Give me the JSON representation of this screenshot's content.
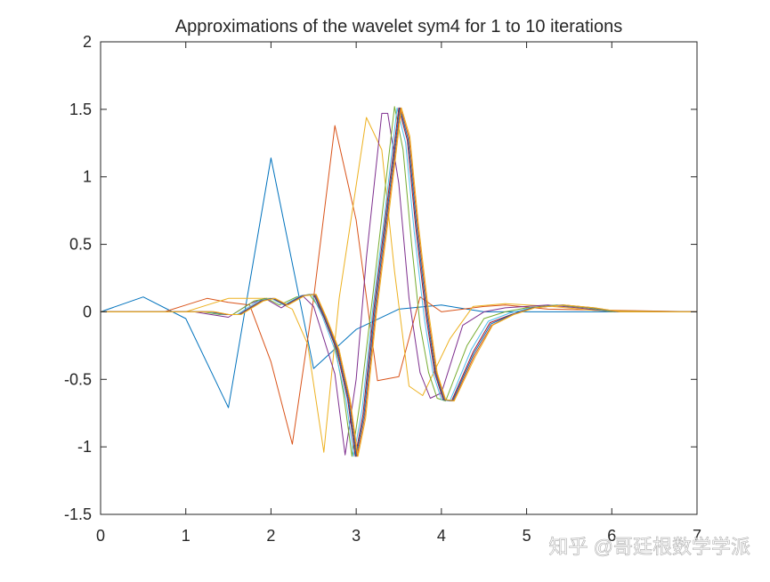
{
  "chart_data": {
    "type": "line",
    "title": "Approximations of the wavelet sym4 for 1 to 10 iterations",
    "xlabel": "",
    "ylabel": "",
    "xlim": [
      0,
      7
    ],
    "ylim": [
      -1.5,
      2
    ],
    "xticks": [
      "0",
      "1",
      "2",
      "3",
      "4",
      "5",
      "6",
      "7"
    ],
    "yticks": [
      "-1.5",
      "-1",
      "-0.5",
      "0",
      "0.5",
      "1",
      "1.5",
      "2"
    ],
    "grid": false,
    "legend": "none",
    "series": [
      {
        "color": "#0072BD",
        "points": [
          [
            0,
            0
          ],
          [
            0.5,
            0.11
          ],
          [
            1,
            -0.05
          ],
          [
            1.5,
            -0.71
          ],
          [
            2,
            1.14
          ],
          [
            2.5,
            -0.42
          ],
          [
            3,
            -0.13
          ],
          [
            3.5,
            0.02
          ],
          [
            4,
            0.05
          ],
          [
            4.5,
            0
          ],
          [
            5,
            0
          ],
          [
            7,
            0
          ]
        ]
      },
      {
        "color": "#D95319",
        "points": [
          [
            0,
            0
          ],
          [
            0.75,
            0
          ],
          [
            1,
            0.05
          ],
          [
            1.25,
            0.1
          ],
          [
            1.5,
            0.07
          ],
          [
            1.75,
            0.05
          ],
          [
            2,
            -0.37
          ],
          [
            2.25,
            -0.98
          ],
          [
            2.5,
            0.1
          ],
          [
            2.75,
            1.38
          ],
          [
            3,
            0.68
          ],
          [
            3.25,
            -0.51
          ],
          [
            3.5,
            -0.48
          ],
          [
            3.75,
            0.11
          ],
          [
            4,
            0
          ],
          [
            4.5,
            0.04
          ],
          [
            4.75,
            0.05
          ],
          [
            5.25,
            0.02
          ],
          [
            7,
            0
          ]
        ]
      },
      {
        "color": "#EDB120",
        "points": [
          [
            0,
            0
          ],
          [
            1,
            0
          ],
          [
            1.25,
            0.05
          ],
          [
            1.5,
            0.1
          ],
          [
            1.75,
            0.1
          ],
          [
            2,
            0.1
          ],
          [
            2.25,
            0.02
          ],
          [
            2.43,
            -0.24
          ],
          [
            2.62,
            -1.04
          ],
          [
            2.8,
            0.1
          ],
          [
            3.12,
            1.44
          ],
          [
            3.3,
            1.2
          ],
          [
            3.45,
            0.3
          ],
          [
            3.62,
            -0.55
          ],
          [
            3.78,
            -0.62
          ],
          [
            4.1,
            -0.2
          ],
          [
            4.37,
            0.04
          ],
          [
            4.75,
            0.06
          ],
          [
            5.3,
            0.04
          ],
          [
            5.8,
            0.01
          ],
          [
            7,
            0
          ]
        ]
      },
      {
        "color": "#7E2F8E",
        "points": [
          [
            0,
            0
          ],
          [
            1.1,
            0
          ],
          [
            1.3,
            -0.02
          ],
          [
            1.5,
            -0.04
          ],
          [
            1.75,
            0.06
          ],
          [
            1.93,
            0.1
          ],
          [
            2.12,
            0.03
          ],
          [
            2.25,
            0.08
          ],
          [
            2.37,
            0.12
          ],
          [
            2.5,
            0.04
          ],
          [
            2.62,
            -0.2
          ],
          [
            2.75,
            -0.46
          ],
          [
            2.87,
            -1.06
          ],
          [
            3,
            -0.5
          ],
          [
            3.12,
            0.4
          ],
          [
            3.3,
            1.47
          ],
          [
            3.37,
            1.47
          ],
          [
            3.5,
            0.95
          ],
          [
            3.62,
            0.1
          ],
          [
            3.75,
            -0.45
          ],
          [
            3.87,
            -0.64
          ],
          [
            4,
            -0.6
          ],
          [
            4.25,
            -0.1
          ],
          [
            4.5,
            0
          ],
          [
            4.75,
            0.03
          ],
          [
            5.25,
            0.05
          ],
          [
            5.6,
            0.03
          ],
          [
            6,
            0
          ],
          [
            7,
            0
          ]
        ]
      },
      {
        "color": "#77AC30",
        "points": [
          [
            0,
            0
          ],
          [
            1.2,
            0
          ],
          [
            1.4,
            -0.02
          ],
          [
            1.55,
            -0.02
          ],
          [
            1.8,
            0.08
          ],
          [
            1.95,
            0.1
          ],
          [
            2.1,
            0.05
          ],
          [
            2.3,
            0.11
          ],
          [
            2.45,
            0.13
          ],
          [
            2.6,
            0
          ],
          [
            2.75,
            -0.25
          ],
          [
            2.85,
            -0.6
          ],
          [
            2.95,
            -1.07
          ],
          [
            3.05,
            -0.65
          ],
          [
            3.2,
            0.15
          ],
          [
            3.3,
            0.7
          ],
          [
            3.45,
            1.52
          ],
          [
            3.55,
            1.2
          ],
          [
            3.65,
            0.5
          ],
          [
            3.75,
            -0.1
          ],
          [
            3.85,
            -0.45
          ],
          [
            3.95,
            -0.64
          ],
          [
            4.05,
            -0.66
          ],
          [
            4.3,
            -0.25
          ],
          [
            4.5,
            -0.05
          ],
          [
            4.75,
            0
          ],
          [
            5,
            0.03
          ],
          [
            5.35,
            0.05
          ],
          [
            5.7,
            0.03
          ],
          [
            6,
            0
          ],
          [
            7,
            0
          ]
        ]
      },
      {
        "color": "#4DBEEE",
        "points": [
          [
            0,
            0
          ],
          [
            1.25,
            0
          ],
          [
            1.45,
            -0.02
          ],
          [
            1.6,
            -0.02
          ],
          [
            1.85,
            0.08
          ],
          [
            2,
            0.1
          ],
          [
            2.15,
            0.05
          ],
          [
            2.35,
            0.12
          ],
          [
            2.48,
            0.13
          ],
          [
            2.6,
            -0.03
          ],
          [
            2.75,
            -0.28
          ],
          [
            2.88,
            -0.65
          ],
          [
            2.97,
            -1.07
          ],
          [
            3.07,
            -0.72
          ],
          [
            3.2,
            0.05
          ],
          [
            3.32,
            0.65
          ],
          [
            3.48,
            1.51
          ],
          [
            3.58,
            1.25
          ],
          [
            3.68,
            0.6
          ],
          [
            3.8,
            -0.05
          ],
          [
            3.9,
            -0.45
          ],
          [
            4,
            -0.65
          ],
          [
            4.1,
            -0.66
          ],
          [
            4.35,
            -0.28
          ],
          [
            4.55,
            -0.07
          ],
          [
            4.8,
            -0.01
          ],
          [
            5.05,
            0.03
          ],
          [
            5.4,
            0.05
          ],
          [
            5.75,
            0.03
          ],
          [
            6.05,
            0
          ],
          [
            7,
            0
          ]
        ]
      },
      {
        "color": "#A2142F",
        "points": [
          [
            0,
            0
          ],
          [
            1.3,
            0
          ],
          [
            1.48,
            -0.02
          ],
          [
            1.62,
            -0.02
          ],
          [
            1.88,
            0.08
          ],
          [
            2.02,
            0.1
          ],
          [
            2.17,
            0.05
          ],
          [
            2.37,
            0.12
          ],
          [
            2.5,
            0.13
          ],
          [
            2.62,
            -0.04
          ],
          [
            2.77,
            -0.28
          ],
          [
            2.9,
            -0.65
          ],
          [
            2.99,
            -1.07
          ],
          [
            3.08,
            -0.76
          ],
          [
            3.21,
            0.03
          ],
          [
            3.33,
            0.63
          ],
          [
            3.5,
            1.51
          ],
          [
            3.6,
            1.27
          ],
          [
            3.7,
            0.62
          ],
          [
            3.82,
            -0.03
          ],
          [
            3.92,
            -0.45
          ],
          [
            4.02,
            -0.65
          ],
          [
            4.12,
            -0.66
          ],
          [
            4.37,
            -0.3
          ],
          [
            4.57,
            -0.08
          ],
          [
            4.82,
            -0.02
          ],
          [
            5.07,
            0.03
          ],
          [
            5.42,
            0.05
          ],
          [
            5.77,
            0.03
          ],
          [
            6.07,
            0
          ],
          [
            7,
            0
          ]
        ]
      },
      {
        "color": "#0072BD",
        "points": [
          [
            0,
            0
          ],
          [
            1.32,
            0
          ],
          [
            1.5,
            -0.02
          ],
          [
            1.63,
            -0.02
          ],
          [
            1.89,
            0.08
          ],
          [
            2.03,
            0.1
          ],
          [
            2.18,
            0.05
          ],
          [
            2.38,
            0.12
          ],
          [
            2.51,
            0.13
          ],
          [
            2.63,
            -0.04
          ],
          [
            2.78,
            -0.28
          ],
          [
            2.91,
            -0.65
          ],
          [
            3,
            -1.07
          ],
          [
            3.09,
            -0.77
          ],
          [
            3.22,
            0.02
          ],
          [
            3.34,
            0.62
          ],
          [
            3.51,
            1.51
          ],
          [
            3.61,
            1.28
          ],
          [
            3.71,
            0.63
          ],
          [
            3.83,
            -0.02
          ],
          [
            3.93,
            -0.45
          ],
          [
            4.03,
            -0.65
          ],
          [
            4.13,
            -0.66
          ],
          [
            4.38,
            -0.31
          ],
          [
            4.58,
            -0.09
          ],
          [
            4.83,
            -0.02
          ],
          [
            5.08,
            0.03
          ],
          [
            5.43,
            0.05
          ],
          [
            5.78,
            0.03
          ],
          [
            6.08,
            0
          ],
          [
            7,
            0
          ]
        ]
      },
      {
        "color": "#D95319",
        "points": [
          [
            0,
            0
          ],
          [
            1.33,
            0
          ],
          [
            1.5,
            -0.02
          ],
          [
            1.64,
            -0.02
          ],
          [
            1.9,
            0.08
          ],
          [
            2.04,
            0.1
          ],
          [
            2.19,
            0.05
          ],
          [
            2.39,
            0.12
          ],
          [
            2.52,
            0.13
          ],
          [
            2.64,
            -0.04
          ],
          [
            2.79,
            -0.28
          ],
          [
            2.92,
            -0.65
          ],
          [
            3.01,
            -1.07
          ],
          [
            3.1,
            -0.78
          ],
          [
            3.23,
            0.01
          ],
          [
            3.35,
            0.61
          ],
          [
            3.52,
            1.51
          ],
          [
            3.62,
            1.29
          ],
          [
            3.72,
            0.64
          ],
          [
            3.84,
            -0.01
          ],
          [
            3.94,
            -0.45
          ],
          [
            4.04,
            -0.65
          ],
          [
            4.14,
            -0.66
          ],
          [
            4.39,
            -0.32
          ],
          [
            4.59,
            -0.1
          ],
          [
            4.84,
            -0.02
          ],
          [
            5.09,
            0.03
          ],
          [
            5.44,
            0.05
          ],
          [
            5.79,
            0.03
          ],
          [
            6.09,
            0
          ],
          [
            7,
            0
          ]
        ]
      },
      {
        "color": "#EDB120",
        "points": [
          [
            0,
            0
          ],
          [
            1.34,
            0
          ],
          [
            1.51,
            -0.02
          ],
          [
            1.65,
            -0.02
          ],
          [
            1.91,
            0.08
          ],
          [
            2.05,
            0.1
          ],
          [
            2.2,
            0.05
          ],
          [
            2.4,
            0.12
          ],
          [
            2.53,
            0.13
          ],
          [
            2.65,
            -0.04
          ],
          [
            2.8,
            -0.28
          ],
          [
            2.93,
            -0.65
          ],
          [
            3.02,
            -1.07
          ],
          [
            3.11,
            -0.79
          ],
          [
            3.24,
            0
          ],
          [
            3.36,
            0.6
          ],
          [
            3.53,
            1.51
          ],
          [
            3.63,
            1.3
          ],
          [
            3.73,
            0.65
          ],
          [
            3.85,
            0
          ],
          [
            3.95,
            -0.45
          ],
          [
            4.05,
            -0.65
          ],
          [
            4.15,
            -0.66
          ],
          [
            4.4,
            -0.33
          ],
          [
            4.6,
            -0.1
          ],
          [
            4.85,
            -0.02
          ],
          [
            5.1,
            0.03
          ],
          [
            5.45,
            0.05
          ],
          [
            5.8,
            0.03
          ],
          [
            6.1,
            0
          ],
          [
            7,
            0
          ]
        ]
      }
    ]
  },
  "watermark": "知乎 @哥廷根数学学派"
}
